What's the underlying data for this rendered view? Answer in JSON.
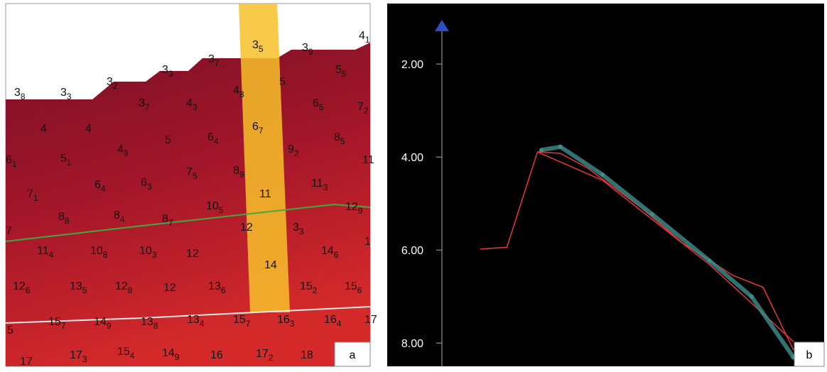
{
  "panel_a": {
    "label": "a",
    "points": [
      {
        "value": "3",
        "sub": "8"
      },
      {
        "value": "3",
        "sub": "3"
      },
      {
        "value": "3",
        "sub": "2"
      },
      {
        "value": "3",
        "sub": "3"
      },
      {
        "value": "3",
        "sub": "7"
      },
      {
        "value": "3",
        "sub": "5"
      },
      {
        "value": "3",
        "sub": "9"
      },
      {
        "value": "4",
        "sub": "1"
      },
      {
        "value": "3",
        "sub": "7"
      },
      {
        "value": "4",
        "sub": "3"
      },
      {
        "value": "4",
        "sub": "8"
      },
      {
        "value": "5",
        "sub": ""
      },
      {
        "value": "5",
        "sub": "5"
      },
      {
        "value": "4",
        "sub": ""
      },
      {
        "value": "4",
        "sub": ""
      },
      {
        "value": "4",
        "sub": "9"
      },
      {
        "value": "5",
        "sub": ""
      },
      {
        "value": "6",
        "sub": "4"
      },
      {
        "value": "6",
        "sub": "7"
      },
      {
        "value": "9",
        "sub": "2"
      },
      {
        "value": "6",
        "sub": "5"
      },
      {
        "value": "7",
        "sub": "2"
      },
      {
        "value": "8",
        "sub": "5"
      },
      {
        "value": "6",
        "sub": "1"
      },
      {
        "value": "5",
        "sub": "1"
      },
      {
        "value": "6",
        "sub": "4"
      },
      {
        "value": "6",
        "sub": "3"
      },
      {
        "value": "7",
        "sub": "5"
      },
      {
        "value": "8",
        "sub": "9"
      },
      {
        "value": "11",
        "sub": ""
      },
      {
        "value": "11",
        "sub": "3"
      },
      {
        "value": "11",
        "sub": ""
      },
      {
        "value": "7",
        "sub": "1"
      },
      {
        "value": "8",
        "sub": "8"
      },
      {
        "value": "8",
        "sub": "4"
      },
      {
        "value": "8",
        "sub": "7"
      },
      {
        "value": "10",
        "sub": "5"
      },
      {
        "value": "12",
        "sub": "9"
      },
      {
        "value": "7",
        "sub": ""
      },
      {
        "value": "12",
        "sub": ""
      },
      {
        "value": "3",
        "sub": "3"
      },
      {
        "value": "11",
        "sub": "4"
      },
      {
        "value": "10",
        "sub": "8"
      },
      {
        "value": "10",
        "sub": "3"
      },
      {
        "value": "12",
        "sub": ""
      },
      {
        "value": "14",
        "sub": "6"
      },
      {
        "value": "1",
        "sub": ""
      },
      {
        "value": "14",
        "sub": ""
      },
      {
        "value": "12",
        "sub": "6"
      },
      {
        "value": "13",
        "sub": "5"
      },
      {
        "value": "12",
        "sub": "8"
      },
      {
        "value": "12",
        "sub": ""
      },
      {
        "value": "13",
        "sub": "6"
      },
      {
        "value": "15",
        "sub": "2"
      },
      {
        "value": "15",
        "sub": "6"
      },
      {
        "value": "5",
        "sub": ""
      },
      {
        "value": "15",
        "sub": "7"
      },
      {
        "value": "14",
        "sub": "9"
      },
      {
        "value": "13",
        "sub": "8"
      },
      {
        "value": "13",
        "sub": "4"
      },
      {
        "value": "15",
        "sub": "7"
      },
      {
        "value": "16",
        "sub": "3"
      },
      {
        "value": "16",
        "sub": "4"
      },
      {
        "value": "17",
        "sub": ""
      },
      {
        "value": "17",
        "sub": ""
      },
      {
        "value": "17",
        "sub": "3"
      },
      {
        "value": "15",
        "sub": "4"
      },
      {
        "value": "14",
        "sub": "9"
      },
      {
        "value": "16",
        "sub": ""
      },
      {
        "value": "17",
        "sub": "2"
      },
      {
        "value": "18",
        "sub": ""
      }
    ]
  },
  "chart_data": {
    "type": "line",
    "label": "b",
    "xlim": [
      0,
      100
    ],
    "ylim": [
      0.7,
      8.5
    ],
    "inverted_y": true,
    "yticks": [
      {
        "value": 2,
        "label": "2.00"
      },
      {
        "value": 4,
        "label": "4.00"
      },
      {
        "value": 6,
        "label": "6.00"
      },
      {
        "value": 8,
        "label": "8.00"
      }
    ],
    "series": [
      {
        "color": "#e8363a",
        "x": [
          10,
          17,
          25,
          31,
          38,
          52,
          63,
          76,
          84,
          92
        ],
        "values": [
          5.98,
          5.94,
          3.89,
          3.92,
          4.23,
          5.08,
          5.85,
          6.54,
          6.8,
          8.15
        ]
      },
      {
        "color": "#e8363a",
        "x": [
          25,
          42,
          70,
          92
        ],
        "values": [
          3.89,
          4.5,
          6.31,
          7.97
        ]
      },
      {
        "color": "#3f8f8c",
        "marker": true,
        "x": [
          26,
          31,
          42,
          55,
          70,
          81,
          92
        ],
        "values": [
          3.85,
          3.78,
          4.38,
          5.23,
          6.23,
          7.0,
          8.31
        ]
      }
    ]
  }
}
